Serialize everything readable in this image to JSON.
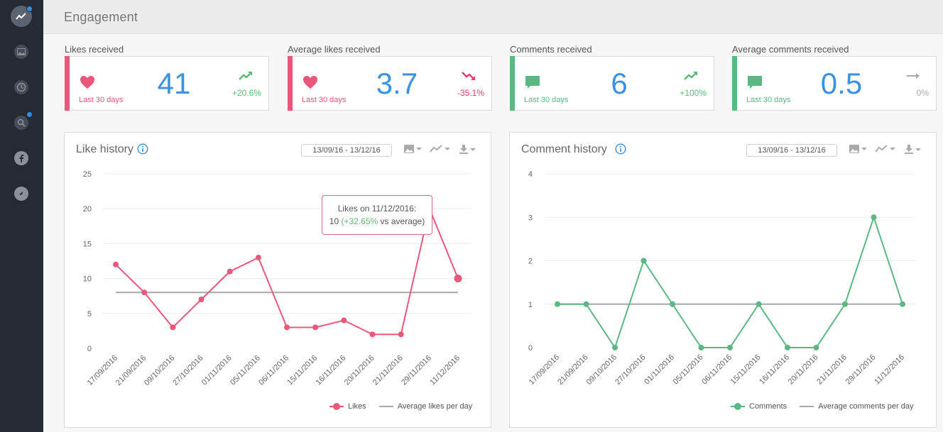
{
  "sidebar": {
    "items": [
      {
        "icon": "analytics-icon",
        "active": true,
        "badge": true
      },
      {
        "icon": "image-icon",
        "active": false,
        "badge": false
      },
      {
        "icon": "clock-icon",
        "active": false,
        "badge": false
      },
      {
        "icon": "search-icon",
        "active": false,
        "badge": true
      },
      {
        "icon": "facebook-icon",
        "active": false,
        "badge": false
      },
      {
        "icon": "compass-icon",
        "active": false,
        "badge": false
      }
    ]
  },
  "header": {
    "title": "Engagement"
  },
  "stats": [
    {
      "label": "Likes received",
      "period": "Last 30 days",
      "value": "41",
      "trend": "+20.6%",
      "direction": "up",
      "color": "#e9587a",
      "icon": "heart-icon"
    },
    {
      "label": "Average likes received",
      "period": "Last 30 days",
      "value": "3.7",
      "trend": "-35.1%",
      "direction": "down",
      "color": "#e9587a",
      "icon": "heart-icon"
    },
    {
      "label": "Comments received",
      "period": "Last 30 days",
      "value": "6",
      "trend": "+100%",
      "direction": "up",
      "color": "#5cb883",
      "icon": "comment-icon"
    },
    {
      "label": "Average comments received",
      "period": "Last 30 days",
      "value": "0.5",
      "trend": "0%",
      "direction": "flat",
      "color": "#5cb883",
      "icon": "comment-icon"
    }
  ],
  "colors": {
    "trend_up": "#5cba76",
    "trend_down": "#d9436a",
    "trend_flat": "#aaaaaa",
    "value_blue": "#3a92e0"
  },
  "like_panel": {
    "title": "Like history",
    "date_range": "13/09/16 - 13/12/16",
    "tooltip": {
      "line1": "Likes on 11/12/2016:",
      "value": "10",
      "delta": "(+32.65%",
      "rest": "vs average)"
    },
    "legend": {
      "series": "Likes",
      "average": "Average likes per day"
    }
  },
  "comment_panel": {
    "title": "Comment history",
    "date_range": "13/09/16 - 13/12/16",
    "legend": {
      "series": "Comments",
      "average": "Average comments per day"
    }
  },
  "chart_data": [
    {
      "type": "line",
      "title": "Like history",
      "x": [
        "17/09/2016",
        "21/09/2016",
        "09/10/2016",
        "27/10/2016",
        "01/11/2016",
        "05/11/2016",
        "06/11/2016",
        "15/11/2016",
        "16/11/2016",
        "20/11/2016",
        "21/11/2016",
        "29/11/2016",
        "11/12/2016"
      ],
      "series": [
        {
          "name": "Likes",
          "values": [
            12,
            8,
            3,
            7,
            11,
            13,
            3,
            3,
            4,
            2,
            2,
            20,
            10
          ],
          "color": "#e9587a"
        },
        {
          "name": "Average likes per day",
          "values": [
            8,
            8,
            8,
            8,
            8,
            8,
            8,
            8,
            8,
            8,
            8,
            8,
            8
          ],
          "color": "#a5a9ae"
        }
      ],
      "y_ticks": [
        0,
        5,
        10,
        15,
        20,
        25
      ],
      "ylim": [
        0,
        25
      ],
      "grid": true,
      "legend": "bottom-right"
    },
    {
      "type": "line",
      "title": "Comment history",
      "x": [
        "17/09/2016",
        "21/09/2016",
        "09/10/2016",
        "27/10/2016",
        "01/11/2016",
        "05/11/2016",
        "06/11/2016",
        "15/11/2016",
        "16/11/2016",
        "20/11/2016",
        "21/11/2016",
        "29/11/2016",
        "11/12/2016"
      ],
      "series": [
        {
          "name": "Comments",
          "values": [
            1,
            1,
            0,
            2,
            1,
            0,
            0,
            1,
            0,
            0,
            1,
            3,
            1
          ],
          "color": "#5cb883"
        },
        {
          "name": "Average comments per day",
          "values": [
            1,
            1,
            1,
            1,
            1,
            1,
            1,
            1,
            1,
            1,
            1,
            1,
            1
          ],
          "color": "#a5a9ae"
        }
      ],
      "y_ticks": [
        0,
        1,
        2,
        3,
        4
      ],
      "ylim": [
        0,
        4
      ],
      "grid": true,
      "legend": "bottom-right"
    }
  ]
}
